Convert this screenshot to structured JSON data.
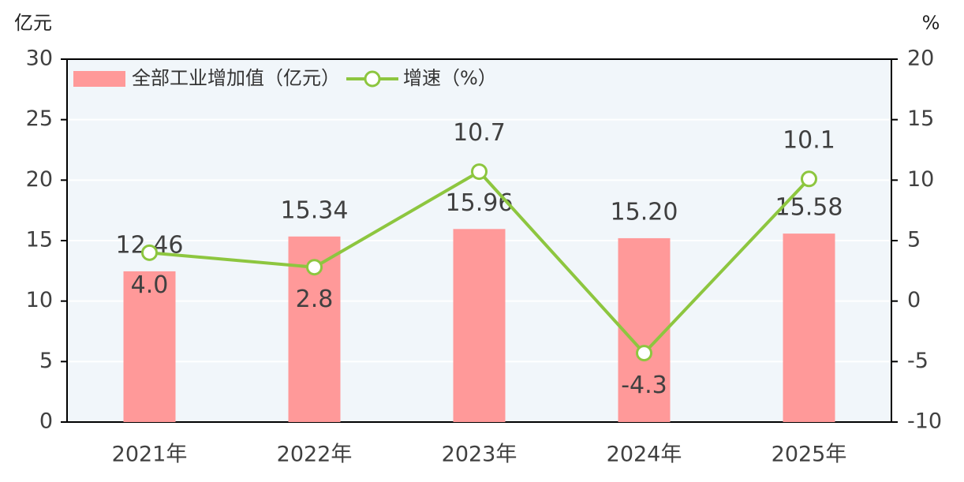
{
  "chart_data": {
    "type": "bar",
    "y_label": "亿元",
    "y2_label": "%",
    "categories": [
      "2021年",
      "2022年",
      "2023年",
      "2024年",
      "2025年"
    ],
    "series": [
      {
        "name": "全部工业增加值（亿元）",
        "type": "bar",
        "color": "#ff9999",
        "values": [
          12.46,
          15.34,
          15.96,
          15.2,
          15.58
        ],
        "value_labels": [
          "12.46",
          "15.34",
          "15.96",
          "15.20",
          "15.58"
        ]
      },
      {
        "name": "增速（%）",
        "type": "line",
        "axis": "y2",
        "color": "#8dc63f",
        "values": [
          4.0,
          2.8,
          10.7,
          -4.3,
          10.1
        ],
        "value_labels": [
          "4.0",
          "2.8",
          "10.7",
          "-4.3",
          "10.1"
        ]
      }
    ],
    "ylim": [
      0,
      30
    ],
    "yticks": [
      0,
      5,
      10,
      15,
      20,
      25,
      30
    ],
    "y2lim": [
      -10,
      20
    ],
    "y2ticks": [
      -10,
      -5,
      0,
      5,
      10,
      15,
      20
    ],
    "grid": true,
    "legend": "top-left"
  }
}
